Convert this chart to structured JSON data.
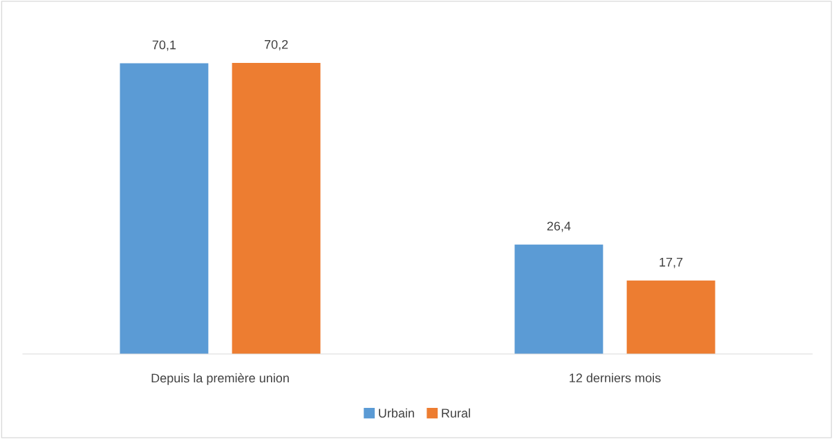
{
  "chart_data": {
    "type": "bar",
    "categories": [
      "Depuis la première union",
      "12 derniers mois"
    ],
    "series": [
      {
        "name": "Urbain",
        "color": "#5b9bd5",
        "values": [
          70.1,
          26.4
        ],
        "value_labels": [
          "70,1",
          "26,4"
        ]
      },
      {
        "name": "Rural",
        "color": "#ed7d31",
        "values": [
          70.2,
          17.7
        ],
        "value_labels": [
          "70,2",
          "17,7"
        ]
      }
    ],
    "legend": "bottom"
  }
}
